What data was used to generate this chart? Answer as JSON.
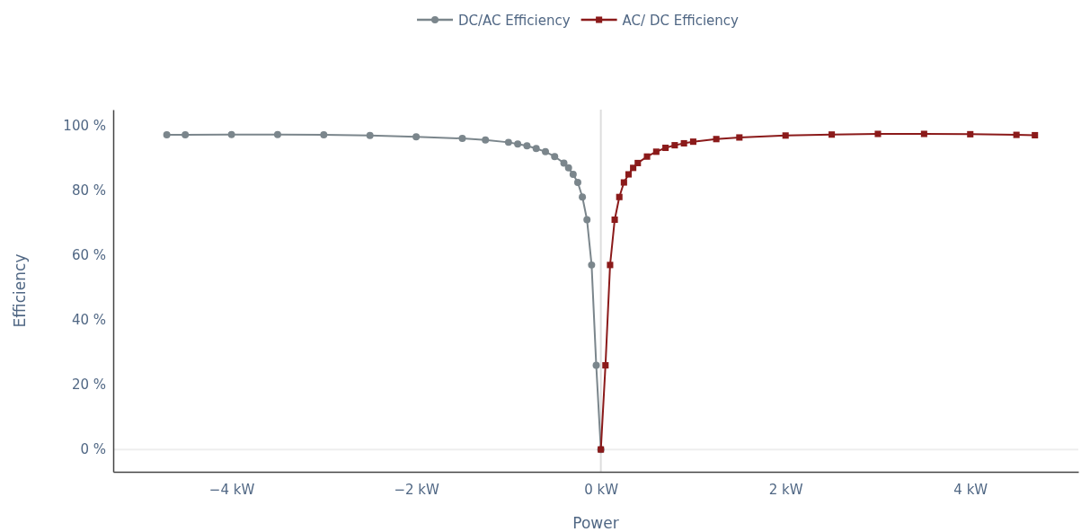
{
  "chart_data": {
    "type": "line",
    "xlabel": "Power",
    "ylabel": "Efficiency",
    "legend": "top",
    "grid": false,
    "xlim": [
      -5.28,
      5.17
    ],
    "ylim": [
      -6.9,
      105
    ],
    "xticks": [
      {
        "value": -4,
        "label": "−4 kW"
      },
      {
        "value": -2,
        "label": "−2 kW"
      },
      {
        "value": 0,
        "label": "0 kW"
      },
      {
        "value": 2,
        "label": "2 kW"
      },
      {
        "value": 4,
        "label": "4 kW"
      }
    ],
    "yticks": [
      {
        "value": 0,
        "label": "0 %"
      },
      {
        "value": 20,
        "label": "20 %"
      },
      {
        "value": 40,
        "label": "40 %"
      },
      {
        "value": 60,
        "label": "60 %"
      },
      {
        "value": 80,
        "label": "80 %"
      },
      {
        "value": 100,
        "label": "100 %"
      }
    ],
    "ref_lines": [
      {
        "axis": "x",
        "value": 0,
        "color": "#dddddd"
      },
      {
        "axis": "y",
        "value": 0,
        "color": "#eeeeee"
      }
    ],
    "line_style": "solid",
    "series": [
      {
        "name": "DC/AC Efficiency",
        "color": "#7b868c",
        "marker": "circle",
        "x": [
          -4.7,
          -4.5,
          -4,
          -3.5,
          -3,
          -2.5,
          -2,
          -1.5,
          -1.25,
          -1,
          -0.9,
          -0.8,
          -0.7,
          -0.6,
          -0.5,
          -0.4,
          -0.35,
          -0.3,
          -0.25,
          -0.2,
          -0.15,
          -0.1,
          -0.05,
          0
        ],
        "values": [
          97.2,
          97.2,
          97.3,
          97.3,
          97.2,
          97,
          96.6,
          96.1,
          95.6,
          94.9,
          94.4,
          93.8,
          93,
          92,
          90.5,
          88.5,
          87,
          85,
          82.5,
          78,
          71,
          57,
          26,
          0
        ]
      },
      {
        "name": "AC/ DC Efficiency",
        "color": "#8b1a1a",
        "marker": "square",
        "x": [
          0,
          0.05,
          0.1,
          0.15,
          0.2,
          0.25,
          0.3,
          0.35,
          0.4,
          0.5,
          0.6,
          0.7,
          0.8,
          0.9,
          1,
          1.25,
          1.5,
          2,
          2.5,
          3,
          3.5,
          4,
          4.5,
          4.7
        ],
        "values": [
          0,
          26,
          57,
          71,
          78,
          82.5,
          85,
          87,
          88.5,
          90.5,
          92,
          93.2,
          94,
          94.6,
          95.1,
          95.9,
          96.4,
          97,
          97.3,
          97.5,
          97.5,
          97.4,
          97.2,
          97.1
        ]
      }
    ]
  }
}
